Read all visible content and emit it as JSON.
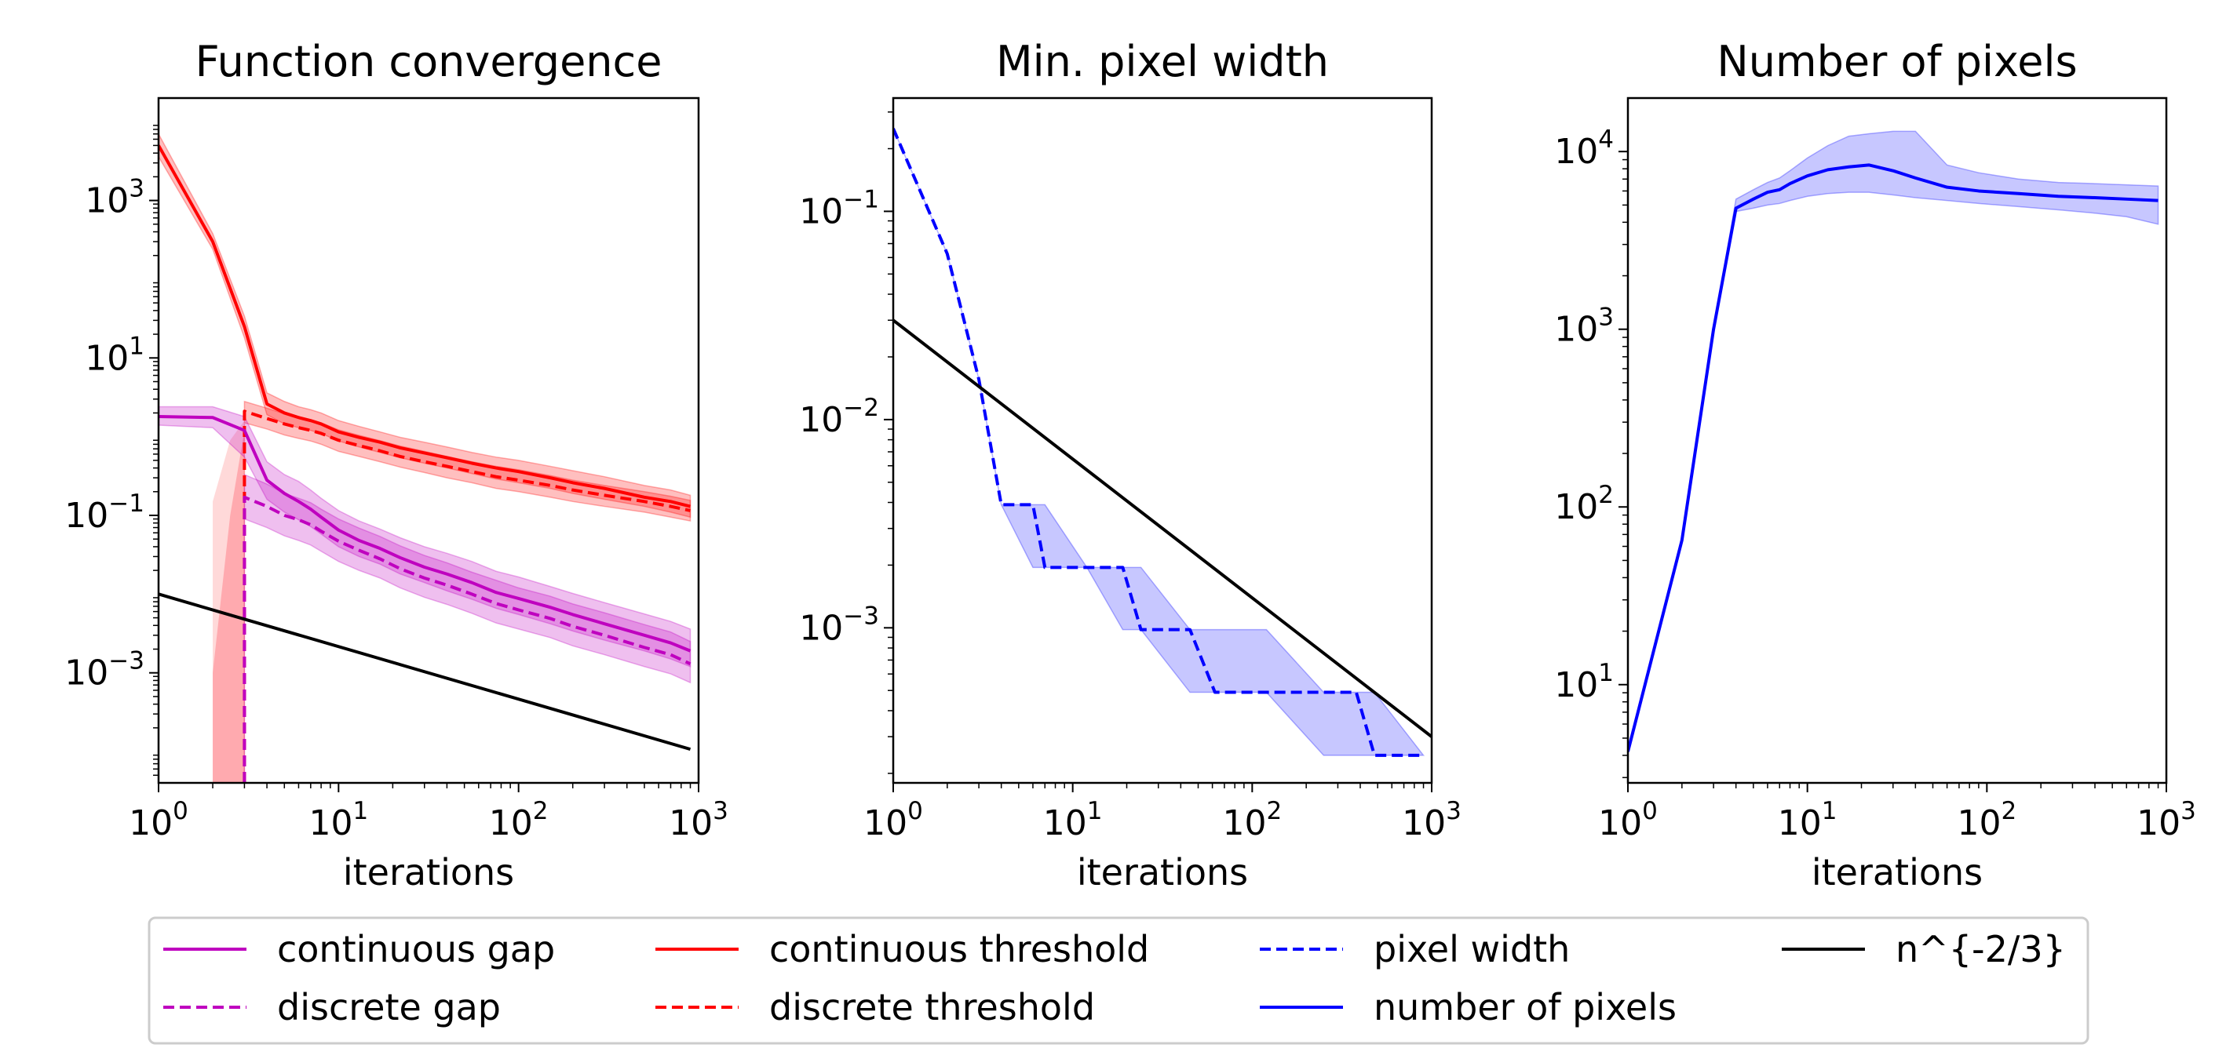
{
  "legend": {
    "entries": [
      {
        "label": "continuous gap",
        "color": "#bf00bf",
        "dash": "solid"
      },
      {
        "label": "discrete gap",
        "color": "#bf00bf",
        "dash": "dashed"
      },
      {
        "label": "continuous threshold",
        "color": "#ff0000",
        "dash": "solid"
      },
      {
        "label": "discrete threshold",
        "color": "#ff0000",
        "dash": "dashed"
      },
      {
        "label": "pixel width",
        "color": "#0000ff",
        "dash": "dashed"
      },
      {
        "label": "number of pixels",
        "color": "#0000ff",
        "dash": "solid"
      },
      {
        "label": "n^{-2/3}",
        "color": "#000000",
        "dash": "solid"
      }
    ]
  },
  "chart_data": [
    {
      "type": "line",
      "title": "Function convergence",
      "xlabel": "iterations",
      "ylabel": "",
      "xscale": "log",
      "yscale": "log",
      "xlim": [
        1,
        1000
      ],
      "ylim": [
        4e-05,
        20000
      ],
      "xticks": [
        {
          "v": 1,
          "b": "10",
          "e": "0"
        },
        {
          "v": 10,
          "b": "10",
          "e": "1"
        },
        {
          "v": 100,
          "b": "10",
          "e": "2"
        },
        {
          "v": 1000,
          "b": "10",
          "e": "3"
        }
      ],
      "yticks": [
        {
          "v": 0.001,
          "b": "10",
          "e": "−3"
        },
        {
          "v": 0.1,
          "b": "10",
          "e": "−1"
        },
        {
          "v": 10,
          "b": "10",
          "e": "1"
        },
        {
          "v": 1000,
          "b": "10",
          "e": "3"
        }
      ],
      "series": [
        {
          "name": "continuous threshold",
          "color": "#ff0000",
          "dash": "solid",
          "band_opacity": 0.25,
          "x": [
            1,
            2,
            3,
            4,
            5,
            6,
            7,
            8,
            10,
            13,
            17,
            22,
            30,
            40,
            55,
            75,
            100,
            150,
            200,
            300,
            500,
            700,
            900
          ],
          "y": [
            5000,
            300,
            25,
            2.6,
            2.0,
            1.75,
            1.6,
            1.45,
            1.15,
            0.98,
            0.85,
            0.72,
            0.62,
            0.54,
            0.46,
            0.4,
            0.36,
            0.3,
            0.26,
            0.22,
            0.17,
            0.15,
            0.13
          ],
          "lo": [
            3600,
            240,
            18,
            1.9,
            1.45,
            1.3,
            1.2,
            1.1,
            0.88,
            0.74,
            0.63,
            0.54,
            0.46,
            0.4,
            0.34,
            0.29,
            0.26,
            0.22,
            0.19,
            0.16,
            0.13,
            0.11,
            0.095
          ],
          "hi": [
            7000,
            380,
            34,
            3.6,
            2.8,
            2.4,
            2.2,
            2.0,
            1.6,
            1.35,
            1.15,
            0.98,
            0.85,
            0.74,
            0.63,
            0.55,
            0.5,
            0.42,
            0.37,
            0.31,
            0.24,
            0.21,
            0.18
          ]
        },
        {
          "name": "discrete threshold",
          "color": "#ff0000",
          "dash": "dashed",
          "band_opacity": 0.25,
          "x": [
            3,
            3,
            4,
            5,
            6,
            7,
            8,
            10,
            13,
            17,
            22,
            30,
            40,
            55,
            75,
            100,
            150,
            200,
            300,
            500,
            700,
            900
          ],
          "y": [
            4e-05,
            2.1,
            1.7,
            1.45,
            1.3,
            1.2,
            1.1,
            0.9,
            0.77,
            0.66,
            0.56,
            0.48,
            0.42,
            0.36,
            0.31,
            0.28,
            0.24,
            0.21,
            0.18,
            0.15,
            0.13,
            0.115
          ],
          "lo": [
            4e-05,
            1.5,
            1.25,
            1.05,
            0.95,
            0.88,
            0.8,
            0.65,
            0.56,
            0.48,
            0.41,
            0.35,
            0.3,
            0.26,
            0.22,
            0.2,
            0.17,
            0.15,
            0.13,
            0.11,
            0.095,
            0.085
          ],
          "hi": [
            4e-05,
            2.8,
            2.3,
            1.95,
            1.75,
            1.6,
            1.5,
            1.22,
            1.04,
            0.89,
            0.76,
            0.65,
            0.56,
            0.48,
            0.42,
            0.38,
            0.32,
            0.28,
            0.24,
            0.2,
            0.175,
            0.155
          ]
        },
        {
          "name": "continuous gap",
          "color": "#bf00bf",
          "dash": "solid",
          "band_opacity": 0.25,
          "x": [
            1,
            2,
            3,
            4,
            5,
            6,
            7,
            8,
            10,
            13,
            17,
            22,
            30,
            40,
            55,
            75,
            100,
            150,
            200,
            300,
            500,
            700,
            900
          ],
          "y": [
            1.8,
            1.75,
            1.2,
            0.28,
            0.19,
            0.15,
            0.12,
            0.095,
            0.065,
            0.048,
            0.038,
            0.029,
            0.022,
            0.018,
            0.014,
            0.0105,
            0.0088,
            0.0068,
            0.0055,
            0.0042,
            0.003,
            0.0024,
            0.0019
          ],
          "lo": [
            1.4,
            1.3,
            0.55,
            0.16,
            0.11,
            0.088,
            0.072,
            0.058,
            0.04,
            0.03,
            0.024,
            0.018,
            0.014,
            0.011,
            0.0086,
            0.0066,
            0.0055,
            0.0042,
            0.0034,
            0.0026,
            0.0019,
            0.0015,
            0.0012
          ],
          "hi": [
            2.4,
            2.4,
            1.8,
            0.48,
            0.33,
            0.27,
            0.21,
            0.165,
            0.115,
            0.085,
            0.067,
            0.052,
            0.04,
            0.033,
            0.026,
            0.0195,
            0.0165,
            0.0125,
            0.0102,
            0.0078,
            0.0056,
            0.0045,
            0.0036
          ]
        },
        {
          "name": "discrete gap",
          "color": "#bf00bf",
          "dash": "dashed",
          "band_opacity": 0.25,
          "x": [
            3,
            3,
            4,
            5,
            6,
            7,
            8,
            10,
            13,
            17,
            22,
            30,
            40,
            55,
            75,
            100,
            150,
            200,
            300,
            500,
            700,
            900
          ],
          "y": [
            4e-05,
            0.17,
            0.13,
            0.1,
            0.088,
            0.076,
            0.063,
            0.047,
            0.036,
            0.028,
            0.021,
            0.016,
            0.013,
            0.01,
            0.0076,
            0.0063,
            0.0049,
            0.0039,
            0.003,
            0.0021,
            0.0017,
            0.0013
          ],
          "lo": [
            4e-05,
            0.09,
            0.07,
            0.055,
            0.048,
            0.042,
            0.035,
            0.026,
            0.02,
            0.016,
            0.012,
            0.0091,
            0.0074,
            0.0057,
            0.0043,
            0.0036,
            0.0028,
            0.0022,
            0.0017,
            0.0012,
            0.00097,
            0.00075
          ],
          "hi": [
            4e-05,
            0.33,
            0.25,
            0.19,
            0.165,
            0.145,
            0.12,
            0.09,
            0.069,
            0.054,
            0.041,
            0.031,
            0.025,
            0.019,
            0.015,
            0.012,
            0.0094,
            0.0075,
            0.0058,
            0.0041,
            0.0033,
            0.0025
          ]
        },
        {
          "name": "n^{-2/3}",
          "color": "#000000",
          "dash": "solid",
          "x": [
            1,
            900
          ],
          "y": [
            0.01,
            0.000107
          ]
        }
      ],
      "extra_bands": [
        {
          "color": "#ff3344",
          "opacity": 0.3,
          "x": [
            2,
            2,
            2.5,
            3,
            3
          ],
          "lo": [
            4e-05,
            4e-05,
            4e-05,
            4e-05,
            4e-05
          ],
          "hi": [
            4e-05,
            0.001,
            0.1,
            1.2,
            4e-05
          ]
        },
        {
          "color": "#ff6666",
          "opacity": 0.25,
          "x": [
            2,
            2.5,
            3
          ],
          "lo": [
            4e-05,
            4e-05,
            4e-05
          ],
          "hi": [
            0.15,
            0.9,
            1.6
          ]
        }
      ]
    },
    {
      "type": "line",
      "title": "Min. pixel width",
      "xlabel": "iterations",
      "ylabel": "",
      "xscale": "log",
      "yscale": "log",
      "xlim": [
        1,
        1000
      ],
      "ylim": [
        0.00018,
        0.35
      ],
      "xticks": [
        {
          "v": 1,
          "b": "10",
          "e": "0"
        },
        {
          "v": 10,
          "b": "10",
          "e": "1"
        },
        {
          "v": 100,
          "b": "10",
          "e": "2"
        },
        {
          "v": 1000,
          "b": "10",
          "e": "3"
        }
      ],
      "yticks": [
        {
          "v": 0.001,
          "b": "10",
          "e": "−3"
        },
        {
          "v": 0.01,
          "b": "10",
          "e": "−2"
        },
        {
          "v": 0.1,
          "b": "10",
          "e": "−1"
        }
      ],
      "series": [
        {
          "name": "pixel width",
          "color": "#0000ff",
          "dash": "dashed",
          "band_opacity": 0.22,
          "x": [
            1,
            2,
            3,
            4,
            6,
            7,
            12,
            19,
            24,
            45,
            62,
            120,
            250,
            380,
            480,
            900
          ],
          "y": [
            0.25,
            0.0625,
            0.0156,
            0.0039,
            0.0039,
            0.00195,
            0.00195,
            0.00195,
            0.00098,
            0.00098,
            0.00049,
            0.00049,
            0.00049,
            0.00049,
            0.000244,
            0.000244
          ],
          "lo": [
            0.25,
            0.0625,
            0.0156,
            0.0039,
            0.00195,
            0.00195,
            0.00195,
            0.00098,
            0.00098,
            0.00049,
            0.00049,
            0.00049,
            0.000244,
            0.000244,
            0.000244,
            0.000244
          ],
          "hi": [
            0.25,
            0.0625,
            0.0156,
            0.0039,
            0.0039,
            0.0039,
            0.00195,
            0.00195,
            0.00195,
            0.00098,
            0.00098,
            0.00098,
            0.00049,
            0.00049,
            0.00049,
            0.000244
          ]
        },
        {
          "name": "n^{-2/3}",
          "color": "#000000",
          "dash": "solid",
          "x": [
            1,
            1000
          ],
          "y": [
            0.03,
            0.0003
          ]
        }
      ]
    },
    {
      "type": "line",
      "title": "Number of pixels",
      "xlabel": "iterations",
      "ylabel": "",
      "xscale": "log",
      "yscale": "log",
      "xlim": [
        1,
        1000
      ],
      "ylim": [
        2.8,
        20000
      ],
      "xticks": [
        {
          "v": 1,
          "b": "10",
          "e": "0"
        },
        {
          "v": 10,
          "b": "10",
          "e": "1"
        },
        {
          "v": 100,
          "b": "10",
          "e": "2"
        },
        {
          "v": 1000,
          "b": "10",
          "e": "3"
        }
      ],
      "yticks": [
        {
          "v": 10,
          "b": "10",
          "e": "1"
        },
        {
          "v": 100,
          "b": "10",
          "e": "2"
        },
        {
          "v": 1000,
          "b": "10",
          "e": "3"
        },
        {
          "v": 10000,
          "b": "10",
          "e": "4"
        }
      ],
      "series": [
        {
          "name": "number of pixels",
          "color": "#0000ff",
          "dash": "solid",
          "band_opacity": 0.22,
          "x": [
            1,
            2,
            3,
            4,
            5,
            6,
            7,
            8,
            10,
            13,
            17,
            22,
            30,
            40,
            60,
            90,
            150,
            250,
            400,
            600,
            900
          ],
          "y": [
            4.2,
            65,
            1000,
            4800,
            5400,
            5900,
            6100,
            6600,
            7300,
            7900,
            8200,
            8400,
            7800,
            7100,
            6300,
            6000,
            5800,
            5600,
            5500,
            5400,
            5300
          ],
          "lo": [
            4.2,
            65,
            1000,
            4600,
            4800,
            5000,
            5100,
            5300,
            5600,
            5800,
            5900,
            5900,
            5700,
            5500,
            5300,
            5100,
            4900,
            4700,
            4500,
            4300,
            3900
          ],
          "hi": [
            4.2,
            65,
            1000,
            5400,
            6100,
            6700,
            7100,
            7800,
            9200,
            10800,
            12200,
            12600,
            13000,
            13000,
            8400,
            7600,
            7000,
            6700,
            6600,
            6500,
            6400
          ]
        }
      ]
    }
  ]
}
